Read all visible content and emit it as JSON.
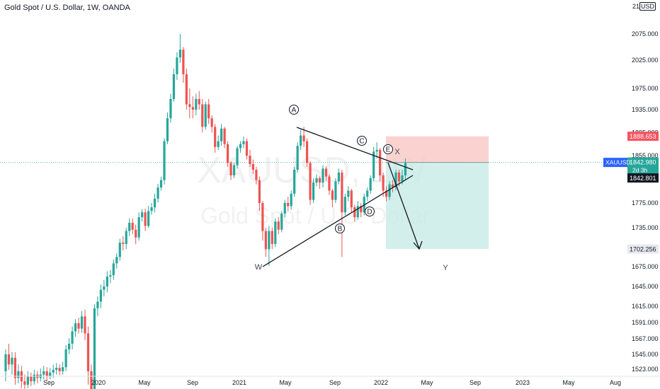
{
  "header": {
    "title": "Gold Spot / U.S. Dollar, 1W, OANDA",
    "scale_mode": "21",
    "currency": "USD"
  },
  "watermark": {
    "symbol": "XAUUSD, 1W",
    "description": "Gold Spot / U.S. Dollar"
  },
  "colors": {
    "up": "#26a69a",
    "down": "#ef5350",
    "stop_zone": "#f8c4c0",
    "target_zone": "#c8ebe6",
    "drawing": "#131722",
    "price_line": "#26a69a"
  },
  "price_labels": {
    "symbol": "XAUUSD",
    "last": "1842.980",
    "countdown": "2d 3h",
    "position_entry": "1842.801",
    "stop": "1888.653",
    "target": "1702.256"
  },
  "annotations": {
    "wave_a": "A",
    "wave_b": "B",
    "wave_c": "C",
    "wave_d": "D",
    "wave_e": "E",
    "w": "W",
    "x": "X",
    "y": "Y"
  },
  "chart_data": {
    "type": "candlestick",
    "timeframe": "1W",
    "ylabel": "USD",
    "y_ticks": [
      2075,
      2025,
      1975,
      1935,
      1895,
      1855,
      1815,
      1775,
      1735,
      1675,
      1645,
      1615,
      1591,
      1567,
      1545,
      1523
    ],
    "y_tick_labels": [
      "2075.000",
      "2025.000",
      "1975.000",
      "1935.000",
      "1895.000",
      "1855.000",
      "1815.000",
      "1775.000",
      "1735.000",
      "1675.000",
      "1645.000",
      "1615.000",
      "1591.000",
      "1567.000",
      "1545.000",
      "1523.000"
    ],
    "x_ticks": [
      "Sep",
      "2020",
      "May",
      "Sep",
      "2021",
      "May",
      "Sep",
      "2022",
      "May",
      "Sep",
      "2023",
      "May",
      "Aug"
    ],
    "candles": [
      [
        1520,
        1545,
        1505,
        1552
      ],
      [
        1545,
        1530,
        1522,
        1560
      ],
      [
        1530,
        1540,
        1515,
        1548
      ],
      [
        1540,
        1510,
        1500,
        1548
      ],
      [
        1510,
        1520,
        1502,
        1530
      ],
      [
        1520,
        1505,
        1495,
        1528
      ],
      [
        1505,
        1500,
        1490,
        1515
      ],
      [
        1500,
        1512,
        1495,
        1520
      ],
      [
        1512,
        1505,
        1498,
        1518
      ],
      [
        1505,
        1515,
        1500,
        1522
      ],
      [
        1515,
        1510,
        1502,
        1520
      ],
      [
        1510,
        1515,
        1505,
        1524
      ],
      [
        1515,
        1520,
        1508,
        1528
      ],
      [
        1520,
        1512,
        1505,
        1526
      ],
      [
        1512,
        1518,
        1508,
        1525
      ],
      [
        1518,
        1522,
        1510,
        1530
      ],
      [
        1522,
        1525,
        1515,
        1532
      ],
      [
        1525,
        1520,
        1514,
        1530
      ],
      [
        1520,
        1526,
        1515,
        1534
      ],
      [
        1526,
        1552,
        1520,
        1558
      ],
      [
        1552,
        1560,
        1545,
        1568
      ],
      [
        1560,
        1578,
        1552,
        1585
      ],
      [
        1578,
        1590,
        1570,
        1596
      ],
      [
        1590,
        1582,
        1575,
        1598
      ],
      [
        1582,
        1600,
        1576,
        1608
      ],
      [
        1600,
        1575,
        1565,
        1610
      ],
      [
        1575,
        1520,
        1500,
        1585
      ],
      [
        1520,
        1490,
        1470,
        1530
      ],
      [
        1490,
        1612,
        1485,
        1618
      ],
      [
        1612,
        1622,
        1600,
        1630
      ],
      [
        1622,
        1640,
        1612,
        1648
      ],
      [
        1640,
        1645,
        1630,
        1655
      ],
      [
        1645,
        1660,
        1636,
        1668
      ],
      [
        1660,
        1662,
        1650,
        1670
      ],
      [
        1662,
        1680,
        1655,
        1686
      ],
      [
        1680,
        1690,
        1672,
        1696
      ],
      [
        1690,
        1712,
        1684,
        1718
      ],
      [
        1712,
        1710,
        1700,
        1722
      ],
      [
        1710,
        1730,
        1702,
        1735
      ],
      [
        1730,
        1743,
        1722,
        1750
      ],
      [
        1743,
        1732,
        1725,
        1750
      ],
      [
        1732,
        1720,
        1710,
        1740
      ],
      [
        1720,
        1752,
        1715,
        1760
      ],
      [
        1752,
        1760,
        1745,
        1765
      ],
      [
        1760,
        1738,
        1730,
        1766
      ],
      [
        1738,
        1762,
        1735,
        1770
      ],
      [
        1762,
        1768,
        1756,
        1775
      ],
      [
        1768,
        1782,
        1760,
        1790
      ],
      [
        1782,
        1800,
        1776,
        1806
      ],
      [
        1800,
        1812,
        1795,
        1818
      ],
      [
        1812,
        1880,
        1805,
        1885
      ],
      [
        1880,
        1920,
        1875,
        1930
      ],
      [
        1920,
        1955,
        1912,
        1965
      ],
      [
        1955,
        2000,
        1950,
        2010
      ],
      [
        2000,
        2030,
        1990,
        2040
      ],
      [
        2030,
        2045,
        2020,
        2075
      ],
      [
        2045,
        2000,
        1985,
        2050
      ],
      [
        2000,
        1945,
        1935,
        2010
      ],
      [
        1945,
        1940,
        1920,
        1975
      ],
      [
        1940,
        1935,
        1920,
        1960
      ],
      [
        1935,
        1955,
        1925,
        1965
      ],
      [
        1955,
        1945,
        1935,
        1970
      ],
      [
        1945,
        1905,
        1895,
        1955
      ],
      [
        1905,
        1945,
        1900,
        1950
      ],
      [
        1945,
        1920,
        1910,
        1955
      ],
      [
        1920,
        1905,
        1895,
        1925
      ],
      [
        1905,
        1870,
        1860,
        1910
      ],
      [
        1870,
        1880,
        1865,
        1890
      ],
      [
        1880,
        1902,
        1872,
        1910
      ],
      [
        1902,
        1875,
        1868,
        1905
      ],
      [
        1875,
        1842,
        1835,
        1880
      ],
      [
        1842,
        1820,
        1812,
        1845
      ],
      [
        1820,
        1838,
        1815,
        1842
      ],
      [
        1838,
        1868,
        1832,
        1872
      ],
      [
        1868,
        1875,
        1860,
        1880
      ],
      [
        1875,
        1880,
        1868,
        1888
      ],
      [
        1880,
        1855,
        1848,
        1885
      ],
      [
        1855,
        1840,
        1835,
        1865
      ],
      [
        1840,
        1830,
        1822,
        1848
      ],
      [
        1830,
        1812,
        1805,
        1835
      ],
      [
        1812,
        1775,
        1762,
        1818
      ],
      [
        1775,
        1730,
        1715,
        1778
      ],
      [
        1730,
        1702,
        1690,
        1735
      ],
      [
        1702,
        1730,
        1676,
        1738
      ],
      [
        1730,
        1710,
        1702,
        1735
      ],
      [
        1710,
        1745,
        1705,
        1750
      ],
      [
        1745,
        1732,
        1725,
        1752
      ],
      [
        1732,
        1758,
        1728,
        1762
      ],
      [
        1758,
        1775,
        1752,
        1780
      ],
      [
        1775,
        1770,
        1762,
        1785
      ],
      [
        1770,
        1790,
        1764,
        1795
      ],
      [
        1790,
        1830,
        1785,
        1835
      ],
      [
        1830,
        1872,
        1825,
        1878
      ],
      [
        1872,
        1890,
        1865,
        1900
      ],
      [
        1890,
        1880,
        1870,
        1905
      ],
      [
        1880,
        1842,
        1835,
        1885
      ],
      [
        1842,
        1780,
        1772,
        1845
      ],
      [
        1780,
        1808,
        1775,
        1815
      ],
      [
        1808,
        1815,
        1802,
        1822
      ],
      [
        1815,
        1808,
        1798,
        1818
      ],
      [
        1808,
        1832,
        1800,
        1838
      ],
      [
        1832,
        1818,
        1810,
        1836
      ],
      [
        1818,
        1795,
        1788,
        1822
      ],
      [
        1795,
        1780,
        1768,
        1798
      ],
      [
        1780,
        1810,
        1775,
        1815
      ],
      [
        1810,
        1825,
        1805,
        1832
      ],
      [
        1825,
        1760,
        1690,
        1830
      ],
      [
        1760,
        1785,
        1755,
        1790
      ],
      [
        1785,
        1795,
        1778,
        1802
      ],
      [
        1795,
        1768,
        1760,
        1798
      ],
      [
        1768,
        1752,
        1745,
        1772
      ],
      [
        1752,
        1770,
        1748,
        1778
      ],
      [
        1770,
        1760,
        1752,
        1775
      ],
      [
        1760,
        1785,
        1755,
        1790
      ],
      [
        1785,
        1795,
        1778,
        1800
      ],
      [
        1795,
        1815,
        1790,
        1820
      ],
      [
        1815,
        1862,
        1810,
        1870
      ],
      [
        1862,
        1865,
        1850,
        1878
      ],
      [
        1865,
        1820,
        1810,
        1868
      ],
      [
        1820,
        1795,
        1785,
        1825
      ],
      [
        1795,
        1785,
        1778,
        1802
      ],
      [
        1785,
        1805,
        1780,
        1810
      ],
      [
        1805,
        1800,
        1792,
        1812
      ],
      [
        1800,
        1825,
        1795,
        1830
      ],
      [
        1825,
        1810,
        1802,
        1830
      ],
      [
        1810,
        1820,
        1805,
        1830
      ],
      [
        1820,
        1842,
        1812,
        1850
      ]
    ],
    "price_line": 1842.98,
    "position": {
      "entry": 1842.801,
      "stop": 1888.653,
      "target": 1702.256
    }
  }
}
